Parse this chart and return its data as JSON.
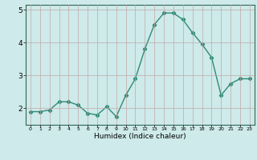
{
  "x": [
    0,
    1,
    2,
    3,
    4,
    5,
    6,
    7,
    8,
    9,
    10,
    11,
    12,
    13,
    14,
    15,
    16,
    17,
    18,
    19,
    20,
    21,
    22,
    23
  ],
  "y": [
    1.9,
    1.9,
    1.95,
    2.2,
    2.2,
    2.1,
    1.85,
    1.8,
    2.05,
    1.75,
    2.4,
    2.9,
    3.8,
    4.55,
    4.9,
    4.9,
    4.7,
    4.3,
    3.95,
    3.55,
    2.4,
    2.75,
    2.9,
    2.9
  ],
  "xlabel": "Humidex (Indice chaleur)",
  "ylim": [
    1.5,
    5.15
  ],
  "xlim": [
    -0.5,
    23.5
  ],
  "yticks": [
    2,
    3,
    4,
    5
  ],
  "xticks": [
    0,
    1,
    2,
    3,
    4,
    5,
    6,
    7,
    8,
    9,
    10,
    11,
    12,
    13,
    14,
    15,
    16,
    17,
    18,
    19,
    20,
    21,
    22,
    23
  ],
  "line_color": "#2e8b74",
  "bg_color": "#ceeaea",
  "grid_color": "#c0a8a8",
  "marker": "D",
  "markersize": 2.2,
  "linewidth": 1.0
}
